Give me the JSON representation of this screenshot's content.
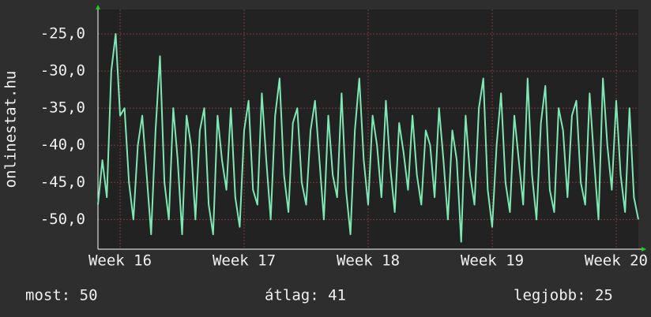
{
  "chart_data": {
    "type": "line",
    "y_label": "onlinestat.hu",
    "x": [
      0,
      0.25,
      0.5,
      0.75,
      1,
      1.25,
      1.5,
      1.75,
      2,
      2.25,
      2.5,
      2.75,
      3,
      3.25,
      3.5,
      3.75,
      4,
      4.25,
      4.5,
      4.75,
      5,
      5.25,
      5.5,
      5.75,
      6,
      6.25,
      6.5,
      6.75,
      7,
      7.25,
      7.5,
      7.75,
      8,
      8.25,
      8.5,
      8.75,
      9,
      9.25,
      9.5,
      9.75,
      10,
      10.25,
      10.5,
      10.75,
      11,
      11.25,
      11.5,
      11.75,
      12,
      12.25,
      12.5,
      12.75,
      13,
      13.25,
      13.5,
      13.75,
      14,
      14.25,
      14.5,
      14.75,
      15,
      15.25,
      15.5,
      15.75,
      16,
      16.25,
      16.5,
      16.75,
      17,
      17.25,
      17.5,
      17.75,
      18,
      18.25,
      18.5,
      18.75,
      19,
      19.25,
      19.5,
      19.75,
      20,
      20.25,
      20.5,
      20.75,
      21,
      21.25,
      21.5,
      21.75,
      22,
      22.25,
      22.5,
      22.75,
      23,
      23.25,
      23.5,
      23.75,
      24,
      24.25,
      24.5,
      24.75,
      25,
      25.25,
      25.5,
      25.75,
      26,
      26.25,
      26.5,
      26.75,
      27,
      27.25,
      27.5,
      27.75,
      28,
      28.25,
      28.5,
      28.75,
      29,
      29.25,
      29.5,
      29.75,
      30,
      30.25,
      30.5
    ],
    "series": [
      {
        "name": "onlinestat.hu",
        "color": "#7ee8b4",
        "values": [
          -48,
          -42,
          -47,
          -30,
          -25,
          -36,
          -35,
          -45,
          -50,
          -40,
          -36,
          -44,
          -52,
          -38,
          -28,
          -45,
          -50,
          -35,
          -42,
          -52,
          -36,
          -40,
          -50,
          -38,
          -35,
          -48,
          -52,
          -36,
          -42,
          -46,
          -35,
          -47,
          -51,
          -38,
          -34,
          -46,
          -48,
          -33,
          -42,
          -50,
          -36,
          -31,
          -44,
          -49,
          -37,
          -35,
          -45,
          -48,
          -38,
          -34,
          -42,
          -50,
          -36,
          -44,
          -47,
          -33,
          -46,
          -52,
          -38,
          -31,
          -42,
          -48,
          -36,
          -40,
          -47,
          -34,
          -43,
          -49,
          -37,
          -41,
          -46,
          -36,
          -44,
          -48,
          -38,
          -40,
          -47,
          -35,
          -42,
          -50,
          -38,
          -42,
          -53,
          -36,
          -44,
          -48,
          -35,
          -31,
          -46,
          -51,
          -40,
          -33,
          -45,
          -49,
          -36,
          -42,
          -48,
          -31,
          -44,
          -50,
          -37,
          -32,
          -46,
          -49,
          -35,
          -38,
          -47,
          -36,
          -34,
          -45,
          -48,
          -33,
          -42,
          -50,
          -31,
          -40,
          -46,
          -34,
          -44,
          -49,
          -35,
          -47,
          -50
        ]
      }
    ],
    "xlim": [
      0,
      30.5
    ],
    "xticks": [
      {
        "value": 1.25,
        "label": "Week 16"
      },
      {
        "value": 8.25,
        "label": "Week 17"
      },
      {
        "value": 15.25,
        "label": "Week 18"
      },
      {
        "value": 22.25,
        "label": "Week 19"
      },
      {
        "value": 29.25,
        "label": "Week 20"
      }
    ],
    "ylim": [
      -54,
      -21.7
    ],
    "yticks": [
      {
        "value": -25,
        "label": "-25,0"
      },
      {
        "value": -30,
        "label": "-30,0"
      },
      {
        "value": -35,
        "label": "-35,0"
      },
      {
        "value": -40,
        "label": "-40,0"
      },
      {
        "value": -45,
        "label": "-45,0"
      },
      {
        "value": -50,
        "label": "-50,0"
      }
    ],
    "grid": true,
    "footer": {
      "current": "most: 50",
      "average": "átlag: 41",
      "best": "legjobb: 25"
    }
  }
}
